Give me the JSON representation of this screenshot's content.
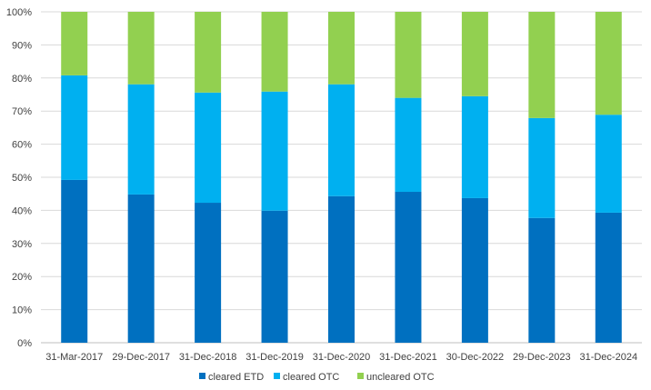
{
  "chart_data": {
    "type": "bar",
    "stacked": true,
    "categories": [
      "31-Mar-2017",
      "29-Dec-2017",
      "31-Dec-2018",
      "31-Dec-2019",
      "31-Dec-2020",
      "31-Dec-2021",
      "30-Dec-2022",
      "29-Dec-2023",
      "31-Dec-2024"
    ],
    "series": [
      {
        "name": "cleared ETD",
        "color": "#0070c0",
        "values": [
          49.2,
          44.8,
          42.3,
          39.9,
          44.3,
          45.6,
          43.7,
          37.7,
          39.3
        ]
      },
      {
        "name": "cleared OTC",
        "color": "#00b0f0",
        "values": [
          31.6,
          33.3,
          33.3,
          36.0,
          33.8,
          28.4,
          30.8,
          30.2,
          29.6
        ]
      },
      {
        "name": "uncleared OTC",
        "color": "#92d050",
        "values": [
          19.2,
          21.9,
          24.4,
          24.1,
          21.9,
          26.0,
          25.5,
          32.1,
          31.1
        ]
      }
    ],
    "yticks": [
      "0%",
      "10%",
      "20%",
      "30%",
      "40%",
      "50%",
      "60%",
      "70%",
      "80%",
      "90%",
      "100%"
    ],
    "ylim": [
      0,
      100
    ],
    "title": "",
    "xlabel": "",
    "ylabel": "",
    "grid": true,
    "legend_position": "bottom"
  }
}
